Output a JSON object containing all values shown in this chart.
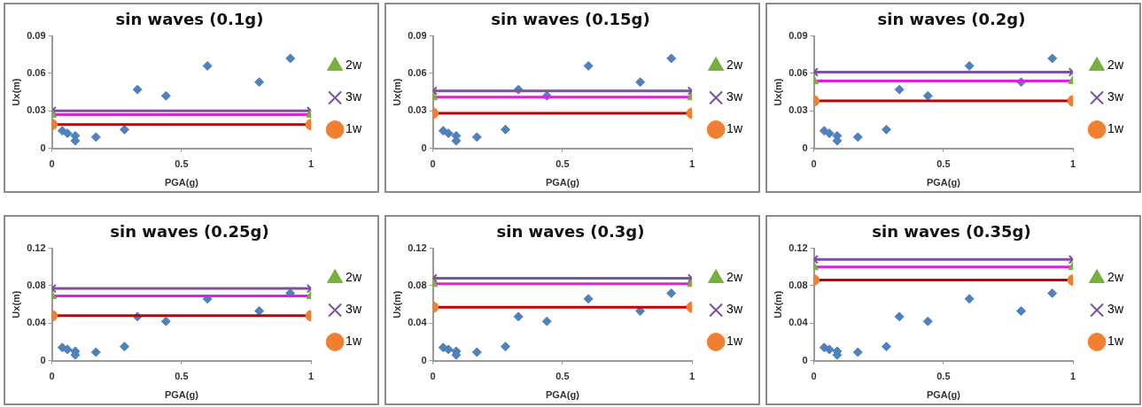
{
  "chart_data": [
    {
      "type": "line",
      "title": "sin waves (0.1g)",
      "xlabel": "PGA(g)",
      "ylabel": "Ux(m)",
      "xlim": [
        0,
        1
      ],
      "xticks": [
        0,
        0.5,
        1
      ],
      "ylim": [
        0,
        0.09
      ],
      "yticks": [
        0,
        0.03,
        0.06,
        0.09
      ],
      "grid": false,
      "legend": "right",
      "series": [
        {
          "name": "2w",
          "color": "#e020e0",
          "colors": [
            "#77b041",
            "#77b041"
          ],
          "marker": "triangle",
          "x": [
            0,
            1
          ],
          "values": [
            0.027,
            0.027
          ]
        },
        {
          "name": "3w",
          "color": "#7f4fa0",
          "marker": "cross",
          "x": [
            0,
            1
          ],
          "values": [
            0.03,
            0.03
          ]
        },
        {
          "name": "1w",
          "color": "#c00000",
          "colors": [
            "#f08030",
            "#f08030"
          ],
          "marker": "circle",
          "x": [
            0,
            1
          ],
          "values": [
            0.019,
            0.019
          ]
        },
        {
          "type": "scatter",
          "color": "#4f81bd",
          "marker": "diamond",
          "x": [
            0.04,
            0.06,
            0.09,
            0.09,
            0.17,
            0.28,
            0.33,
            0.44,
            0.6,
            0.8,
            0.92
          ],
          "values": [
            0.014,
            0.012,
            0.01,
            0.006,
            0.009,
            0.015,
            0.047,
            0.042,
            0.066,
            0.053,
            0.072
          ]
        }
      ]
    },
    {
      "type": "line",
      "title": "sin waves (0.15g)",
      "xlabel": "PGA(g)",
      "ylabel": "Ux(m)",
      "xlim": [
        0,
        1
      ],
      "xticks": [
        0,
        0.5,
        1
      ],
      "ylim": [
        0,
        0.09
      ],
      "yticks": [
        0,
        0.03,
        0.06,
        0.09
      ],
      "grid": false,
      "legend": "right",
      "series": [
        {
          "name": "2w",
          "color": "#e020e0",
          "colors": [
            "#77b041",
            "#77b041"
          ],
          "marker": "triangle",
          "x": [
            0,
            1
          ],
          "values": [
            0.041,
            0.041
          ]
        },
        {
          "name": "3w",
          "color": "#7f4fa0",
          "marker": "cross",
          "x": [
            0,
            1
          ],
          "values": [
            0.046,
            0.046
          ]
        },
        {
          "name": "1w",
          "color": "#c00000",
          "colors": [
            "#f08030",
            "#f08030"
          ],
          "marker": "circle",
          "x": [
            0,
            1
          ],
          "values": [
            0.028,
            0.028
          ]
        },
        {
          "type": "scatter",
          "color": "#4f81bd",
          "marker": "diamond",
          "x": [
            0.04,
            0.06,
            0.09,
            0.09,
            0.17,
            0.28,
            0.33,
            0.44,
            0.6,
            0.8,
            0.92
          ],
          "values": [
            0.014,
            0.012,
            0.01,
            0.006,
            0.009,
            0.015,
            0.047,
            0.042,
            0.066,
            0.053,
            0.072
          ]
        }
      ]
    },
    {
      "type": "line",
      "title": "sin waves (0.2g)",
      "xlabel": "PGA(g)",
      "ylabel": "Ux(m)",
      "xlim": [
        0,
        1
      ],
      "xticks": [
        0,
        0.5,
        1
      ],
      "ylim": [
        0,
        0.09
      ],
      "yticks": [
        0,
        0.03,
        0.06,
        0.09
      ],
      "grid": false,
      "legend": "right",
      "series": [
        {
          "name": "2w",
          "color": "#e020e0",
          "colors": [
            "#77b041",
            "#77b041"
          ],
          "marker": "triangle",
          "x": [
            0,
            1
          ],
          "values": [
            0.054,
            0.054
          ]
        },
        {
          "name": "3w",
          "color": "#7f4fa0",
          "marker": "cross",
          "x": [
            0,
            1
          ],
          "values": [
            0.061,
            0.061
          ]
        },
        {
          "name": "1w",
          "color": "#c00000",
          "colors": [
            "#f08030",
            "#f08030"
          ],
          "marker": "circle",
          "x": [
            0,
            1
          ],
          "values": [
            0.038,
            0.038
          ]
        },
        {
          "type": "scatter",
          "color": "#4f81bd",
          "marker": "diamond",
          "x": [
            0.04,
            0.06,
            0.09,
            0.09,
            0.17,
            0.28,
            0.33,
            0.44,
            0.6,
            0.8,
            0.92
          ],
          "values": [
            0.014,
            0.012,
            0.01,
            0.006,
            0.009,
            0.015,
            0.047,
            0.042,
            0.066,
            0.053,
            0.072
          ]
        }
      ]
    },
    {
      "type": "line",
      "title": "sin waves (0.25g)",
      "xlabel": "PGA(g)",
      "ylabel": "Ux(m)",
      "xlim": [
        0,
        1
      ],
      "xticks": [
        0,
        0.5,
        1
      ],
      "ylim": [
        0,
        0.12
      ],
      "yticks": [
        0,
        0.04,
        0.08,
        0.12
      ],
      "grid": false,
      "legend": "right",
      "series": [
        {
          "name": "2w",
          "color": "#e020e0",
          "colors": [
            "#77b041",
            "#77b041"
          ],
          "marker": "triangle",
          "x": [
            0,
            1
          ],
          "values": [
            0.069,
            0.069
          ]
        },
        {
          "name": "3w",
          "color": "#7f4fa0",
          "marker": "cross",
          "x": [
            0,
            1
          ],
          "values": [
            0.077,
            0.077
          ]
        },
        {
          "name": "1w",
          "color": "#c00000",
          "colors": [
            "#f08030",
            "#f08030"
          ],
          "marker": "circle",
          "x": [
            0,
            1
          ],
          "values": [
            0.048,
            0.048
          ]
        },
        {
          "type": "scatter",
          "color": "#4f81bd",
          "marker": "diamond",
          "x": [
            0.04,
            0.06,
            0.09,
            0.09,
            0.17,
            0.28,
            0.33,
            0.44,
            0.6,
            0.8,
            0.92
          ],
          "values": [
            0.014,
            0.012,
            0.01,
            0.006,
            0.009,
            0.015,
            0.047,
            0.042,
            0.066,
            0.053,
            0.072
          ]
        }
      ]
    },
    {
      "type": "line",
      "title": "sin waves (0.3g)",
      "xlabel": "PGA(g)",
      "ylabel": "Ux(m)",
      "xlim": [
        0,
        1
      ],
      "xticks": [
        0,
        0.5,
        1
      ],
      "ylim": [
        0,
        0.12
      ],
      "yticks": [
        0,
        0.04,
        0.08,
        0.12
      ],
      "grid": false,
      "legend": "right",
      "series": [
        {
          "name": "2w",
          "color": "#e020e0",
          "colors": [
            "#77b041",
            "#77b041"
          ],
          "marker": "triangle",
          "x": [
            0,
            1
          ],
          "values": [
            0.082,
            0.082
          ]
        },
        {
          "name": "3w",
          "color": "#7f4fa0",
          "marker": "cross",
          "x": [
            0,
            1
          ],
          "values": [
            0.088,
            0.088
          ]
        },
        {
          "name": "1w",
          "color": "#c00000",
          "colors": [
            "#f08030",
            "#f08030"
          ],
          "marker": "circle",
          "x": [
            0,
            1
          ],
          "values": [
            0.057,
            0.057
          ]
        },
        {
          "type": "scatter",
          "color": "#4f81bd",
          "marker": "diamond",
          "x": [
            0.04,
            0.06,
            0.09,
            0.09,
            0.17,
            0.28,
            0.33,
            0.44,
            0.6,
            0.8,
            0.92
          ],
          "values": [
            0.014,
            0.012,
            0.01,
            0.006,
            0.009,
            0.015,
            0.047,
            0.042,
            0.066,
            0.053,
            0.072
          ]
        }
      ]
    },
    {
      "type": "line",
      "title": "sin waves (0.35g)",
      "xlabel": "PGA(g)",
      "ylabel": "Ux(m)",
      "xlim": [
        0,
        1
      ],
      "xticks": [
        0,
        0.5,
        1
      ],
      "ylim": [
        0,
        0.12
      ],
      "yticks": [
        0,
        0.04,
        0.08,
        0.12
      ],
      "grid": false,
      "legend": "right",
      "series": [
        {
          "name": "2w",
          "color": "#e020e0",
          "colors": [
            "#77b041",
            "#77b041"
          ],
          "marker": "triangle",
          "x": [
            0,
            1
          ],
          "values": [
            0.1,
            0.1
          ]
        },
        {
          "name": "3w",
          "color": "#7f4fa0",
          "marker": "cross",
          "x": [
            0,
            1
          ],
          "values": [
            0.108,
            0.108
          ]
        },
        {
          "name": "1w",
          "color": "#c00000",
          "colors": [
            "#f08030",
            "#f08030"
          ],
          "marker": "circle",
          "x": [
            0,
            1
          ],
          "values": [
            0.086,
            0.086
          ]
        },
        {
          "type": "scatter",
          "color": "#4f81bd",
          "marker": "diamond",
          "x": [
            0.04,
            0.06,
            0.09,
            0.09,
            0.17,
            0.28,
            0.33,
            0.44,
            0.6,
            0.8,
            0.92
          ],
          "values": [
            0.014,
            0.012,
            0.01,
            0.006,
            0.009,
            0.015,
            0.047,
            0.042,
            0.066,
            0.053,
            0.072
          ]
        }
      ]
    }
  ]
}
